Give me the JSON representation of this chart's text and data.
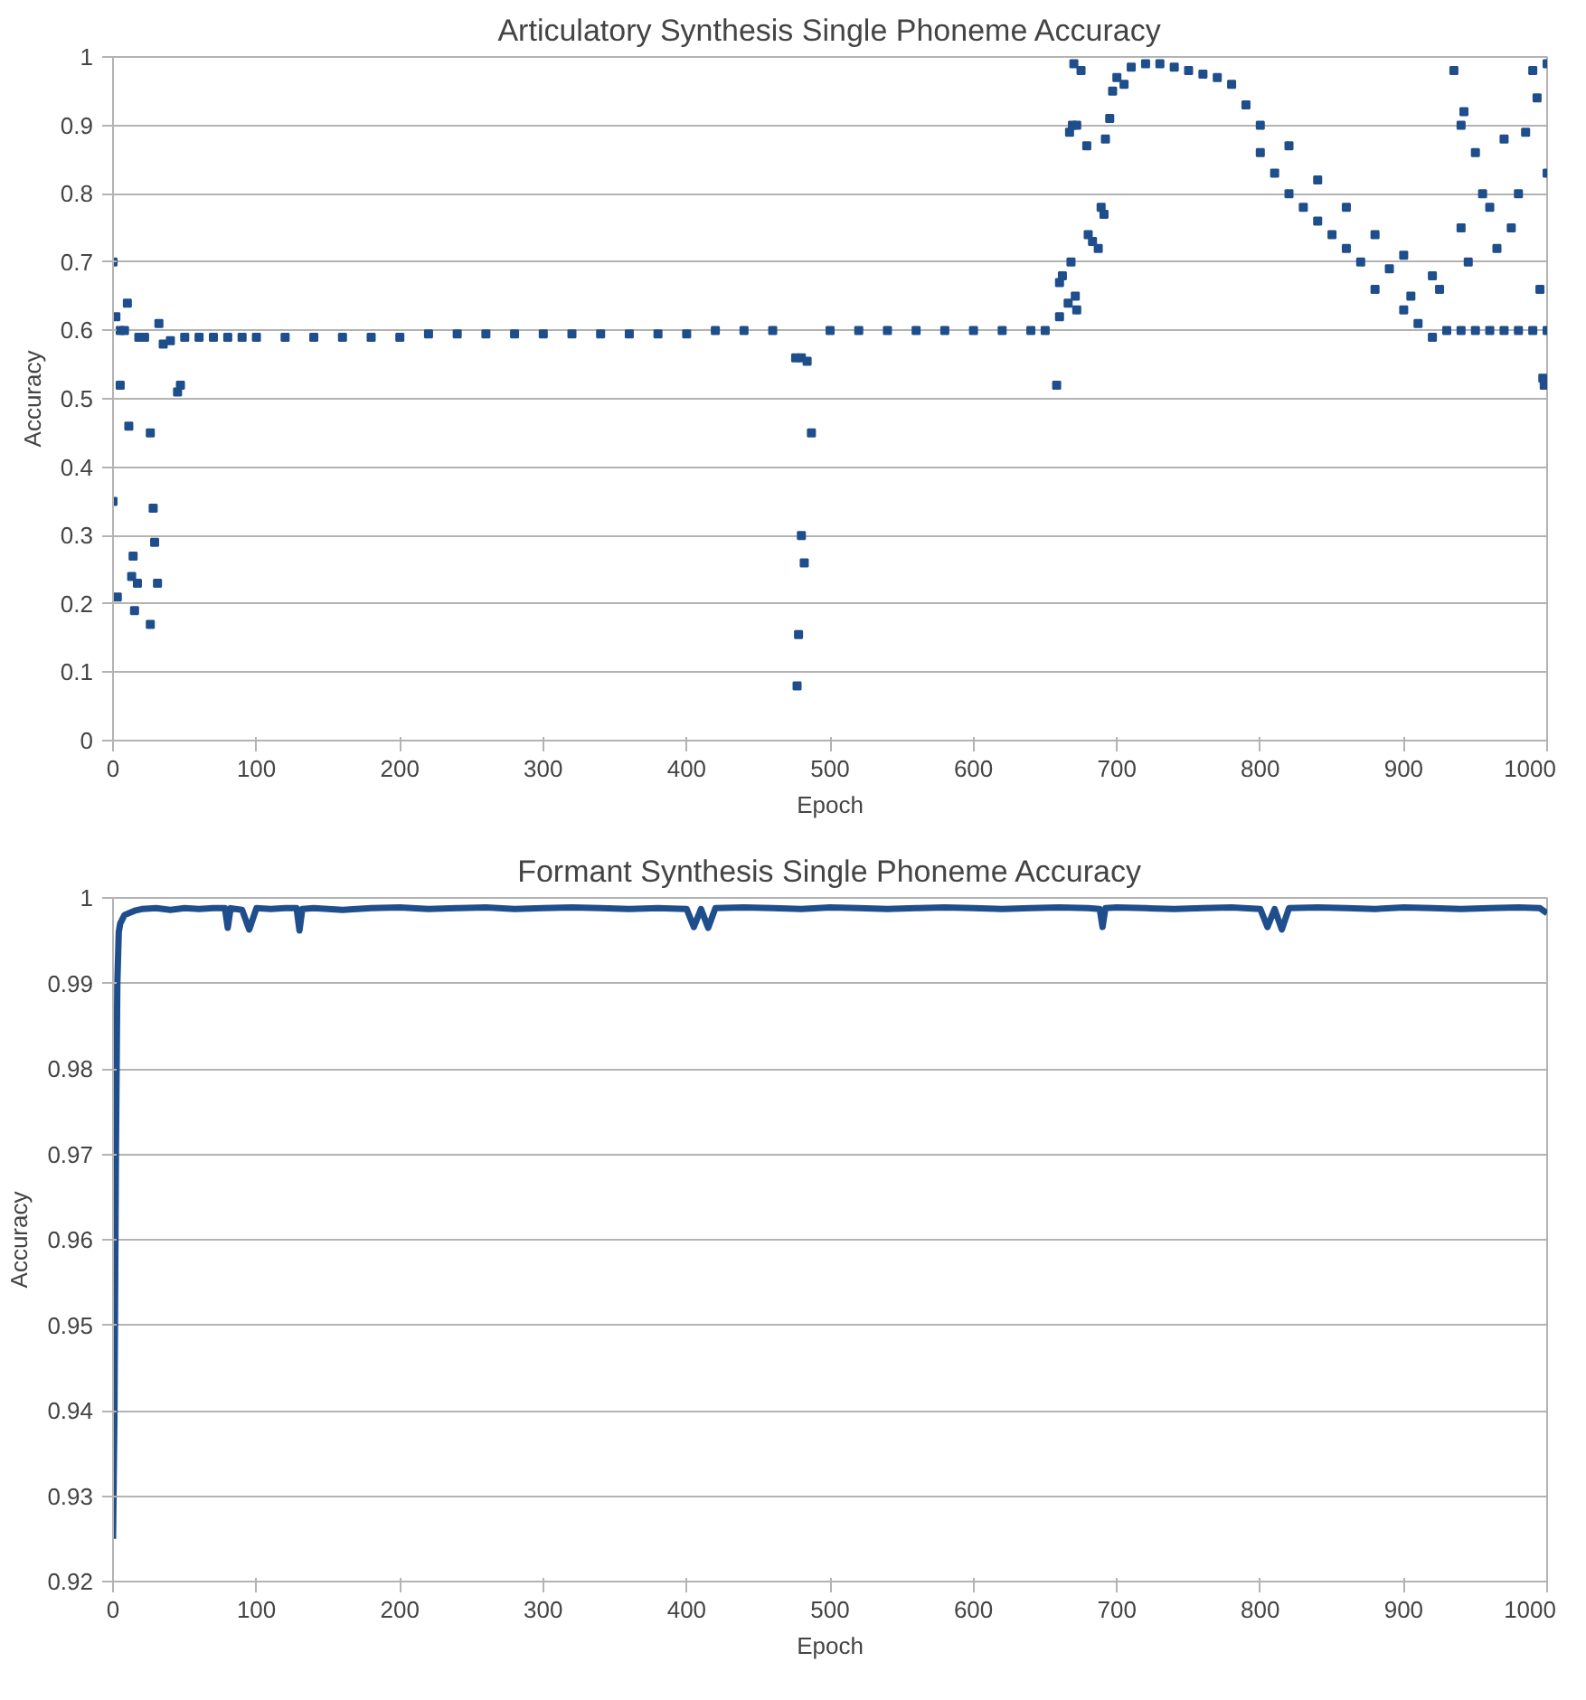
{
  "chart_data": [
    {
      "type": "scatter",
      "title": "Articulatory Synthesis Single Phoneme Accuracy",
      "xlabel": "Epoch",
      "ylabel": "Accuracy",
      "marker": "square",
      "grid": "y",
      "xlim": [
        0,
        1000
      ],
      "ylim": [
        0,
        1
      ],
      "xticks": [
        0,
        100,
        200,
        300,
        400,
        500,
        600,
        700,
        800,
        900,
        1000
      ],
      "yticks": [
        0,
        0.1,
        0.2,
        0.3,
        0.4,
        0.5,
        0.6,
        0.7,
        0.8,
        0.9,
        1
      ],
      "series": [
        {
          "color": "#1f4e8c",
          "x": [
            0,
            0,
            2,
            3,
            5,
            5,
            8,
            10,
            11,
            13,
            14,
            15,
            17,
            18,
            22,
            26,
            26,
            28,
            29,
            31,
            32,
            35,
            45,
            47,
            40,
            50,
            60,
            70,
            80,
            90,
            100,
            120,
            140,
            160,
            180,
            200,
            220,
            240,
            260,
            280,
            300,
            320,
            340,
            360,
            380,
            400,
            420,
            440,
            460,
            476,
            480,
            484,
            480,
            482,
            478,
            477,
            487,
            500,
            520,
            540,
            560,
            580,
            600,
            620,
            640,
            650,
            658,
            660,
            662,
            668,
            660,
            666,
            672,
            671,
            667,
            669,
            672,
            679,
            680,
            683,
            687,
            689,
            691,
            692,
            695,
            697,
            700,
            705,
            670,
            675,
            710,
            720,
            730,
            740,
            750,
            760,
            770,
            780,
            790,
            800,
            820,
            840,
            860,
            880,
            900,
            920,
            925,
            800,
            820,
            840,
            860,
            880,
            900,
            910,
            920,
            810,
            830,
            850,
            870,
            890,
            905,
            930,
            940,
            950,
            960,
            970,
            980,
            990,
            1000,
            935,
            940,
            942,
            950,
            955,
            960,
            965,
            970,
            975,
            980,
            985,
            990,
            993,
            995,
            997,
            998,
            1000,
            1000,
            940,
            945
          ],
          "values": [
            0.7,
            0.35,
            0.62,
            0.21,
            0.52,
            0.6,
            0.6,
            0.64,
            0.46,
            0.24,
            0.27,
            0.19,
            0.23,
            0.59,
            0.59,
            0.45,
            0.17,
            0.34,
            0.29,
            0.23,
            0.61,
            0.58,
            0.51,
            0.52,
            0.585,
            0.59,
            0.59,
            0.59,
            0.59,
            0.59,
            0.59,
            0.59,
            0.59,
            0.59,
            0.59,
            0.59,
            0.595,
            0.595,
            0.595,
            0.595,
            0.595,
            0.595,
            0.595,
            0.595,
            0.595,
            0.595,
            0.6,
            0.6,
            0.6,
            0.56,
            0.56,
            0.555,
            0.3,
            0.26,
            0.155,
            0.08,
            0.45,
            0.6,
            0.6,
            0.6,
            0.6,
            0.6,
            0.6,
            0.6,
            0.6,
            0.6,
            0.52,
            0.67,
            0.68,
            0.7,
            0.62,
            0.64,
            0.63,
            0.65,
            0.89,
            0.9,
            0.9,
            0.87,
            0.74,
            0.73,
            0.72,
            0.78,
            0.77,
            0.88,
            0.91,
            0.95,
            0.97,
            0.96,
            0.99,
            0.98,
            0.985,
            0.99,
            0.99,
            0.985,
            0.98,
            0.975,
            0.97,
            0.96,
            0.93,
            0.9,
            0.87,
            0.82,
            0.78,
            0.74,
            0.71,
            0.68,
            0.66,
            0.86,
            0.8,
            0.76,
            0.72,
            0.66,
            0.63,
            0.61,
            0.59,
            0.83,
            0.78,
            0.74,
            0.7,
            0.69,
            0.65,
            0.6,
            0.6,
            0.6,
            0.6,
            0.6,
            0.6,
            0.6,
            0.6,
            0.98,
            0.9,
            0.92,
            0.86,
            0.8,
            0.78,
            0.72,
            0.88,
            0.75,
            0.8,
            0.89,
            0.98,
            0.94,
            0.66,
            0.53,
            0.52,
            0.83,
            0.99,
            0.75,
            0.7
          ]
        }
      ]
    },
    {
      "type": "line",
      "title": "Formant Synthesis Single Phoneme Accuracy",
      "xlabel": "Epoch",
      "ylabel": "Accuracy",
      "grid": "y",
      "xlim": [
        0,
        1000
      ],
      "ylim": [
        0.92,
        1
      ],
      "xticks": [
        0,
        100,
        200,
        300,
        400,
        500,
        600,
        700,
        800,
        900,
        1000
      ],
      "yticks": [
        0.92,
        0.93,
        0.94,
        0.95,
        0.96,
        0.97,
        0.98,
        0.99,
        1
      ],
      "series": [
        {
          "color": "#1f4e8c",
          "x": [
            0,
            1,
            2,
            3,
            4,
            5,
            8,
            15,
            20,
            30,
            40,
            50,
            60,
            70,
            78,
            80,
            82,
            90,
            95,
            100,
            110,
            120,
            128,
            130,
            132,
            140,
            160,
            180,
            200,
            220,
            240,
            260,
            280,
            300,
            320,
            340,
            360,
            380,
            400,
            405,
            410,
            415,
            420,
            440,
            460,
            480,
            500,
            520,
            540,
            560,
            580,
            600,
            620,
            640,
            660,
            680,
            688,
            690,
            692,
            700,
            720,
            740,
            760,
            780,
            800,
            805,
            810,
            815,
            820,
            840,
            860,
            880,
            900,
            920,
            940,
            960,
            980,
            995,
            1000
          ],
          "values": [
            0.925,
            0.94,
            0.97,
            0.99,
            0.996,
            0.997,
            0.998,
            0.9985,
            0.9987,
            0.9988,
            0.9986,
            0.9988,
            0.9987,
            0.9988,
            0.9988,
            0.9965,
            0.9988,
            0.9986,
            0.9963,
            0.9988,
            0.9987,
            0.9988,
            0.9988,
            0.9962,
            0.9987,
            0.9988,
            0.9986,
            0.9988,
            0.9989,
            0.9987,
            0.9988,
            0.9989,
            0.9987,
            0.9988,
            0.9989,
            0.9988,
            0.9987,
            0.9988,
            0.9987,
            0.9966,
            0.9987,
            0.9965,
            0.9988,
            0.9989,
            0.9988,
            0.9987,
            0.9989,
            0.9988,
            0.9987,
            0.9988,
            0.9989,
            0.9988,
            0.9987,
            0.9988,
            0.9989,
            0.9988,
            0.9987,
            0.9966,
            0.9988,
            0.9989,
            0.9988,
            0.9987,
            0.9988,
            0.9989,
            0.9987,
            0.9966,
            0.9987,
            0.9963,
            0.9988,
            0.9989,
            0.9988,
            0.9987,
            0.9989,
            0.9988,
            0.9987,
            0.9988,
            0.9989,
            0.9988,
            0.9982
          ]
        }
      ]
    }
  ]
}
